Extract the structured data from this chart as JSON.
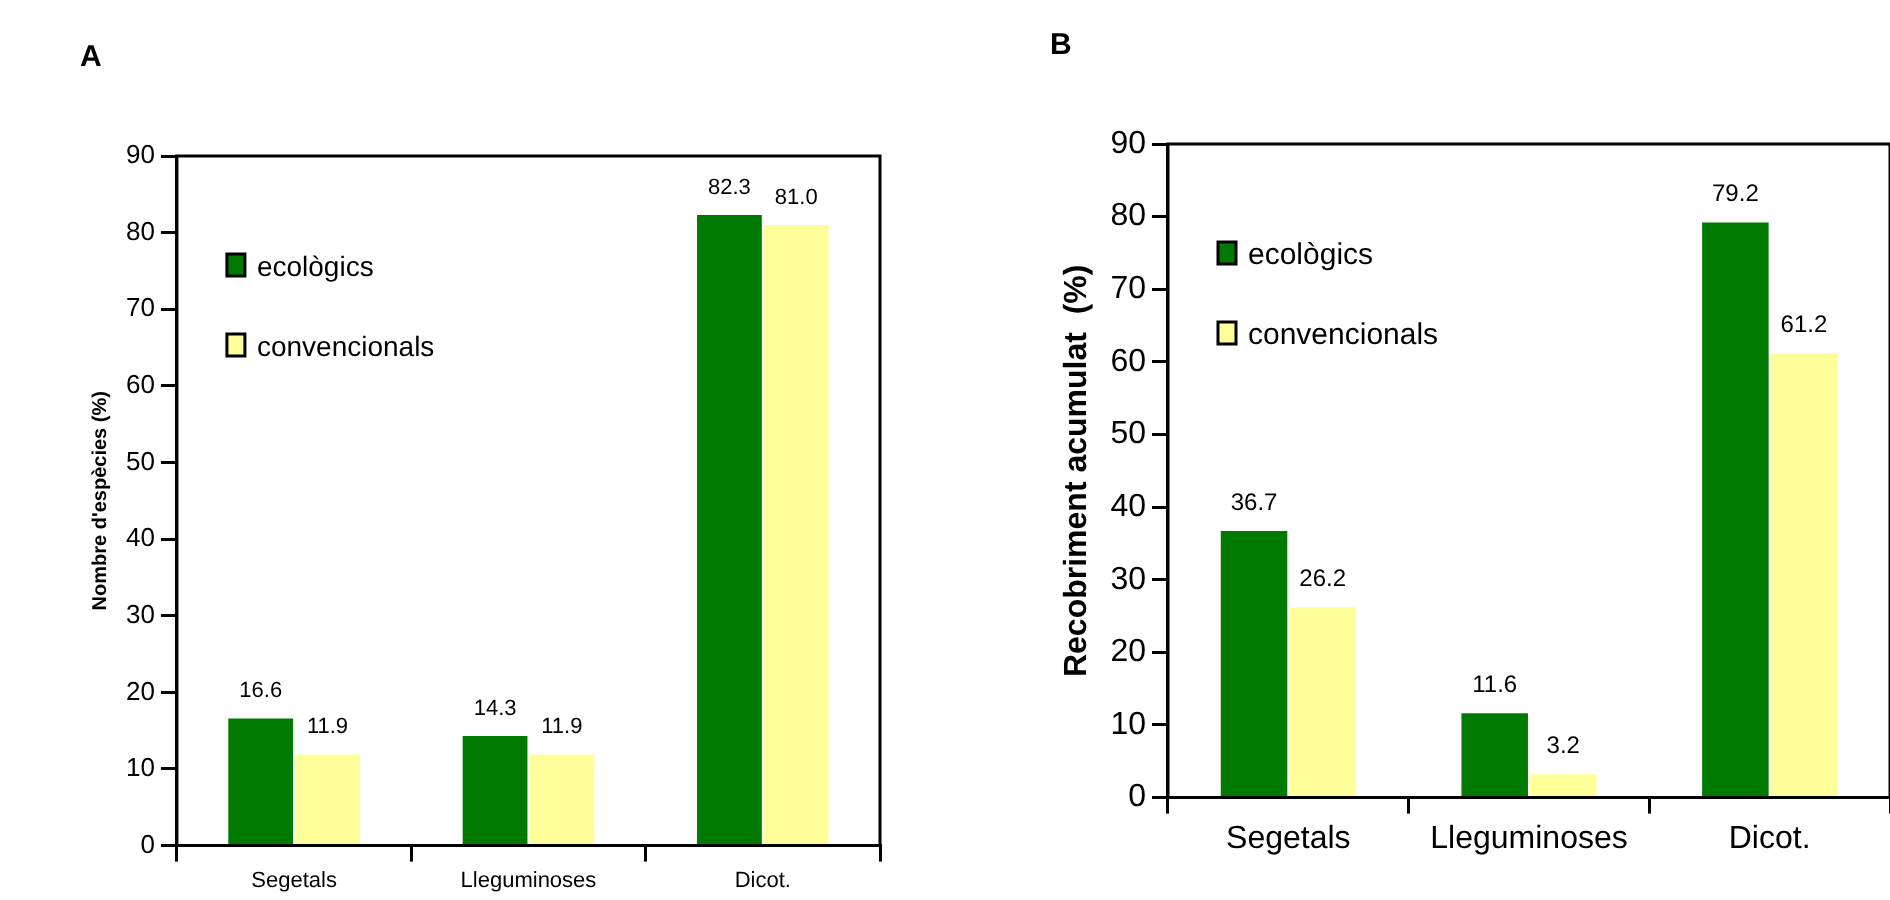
{
  "chart_data": [
    {
      "type": "bar",
      "title": "A",
      "ylabel": "Nombre d'espècies (%)",
      "categories": [
        "Segetals",
        "Lleguminoses",
        "Dicot."
      ],
      "series": [
        {
          "name": "ecològics",
          "color": "#007a00",
          "values": [
            16.6,
            14.3,
            82.3
          ],
          "value_labels": [
            "16.6",
            "14.3",
            "82.3"
          ]
        },
        {
          "name": "convencionals",
          "color": "#ffff99",
          "values": [
            11.9,
            11.9,
            81.0
          ],
          "value_labels": [
            "11.9",
            "11.9",
            "81.0"
          ]
        }
      ],
      "ylim": [
        0,
        90
      ],
      "yticks": [
        0,
        10,
        20,
        30,
        40,
        50,
        60,
        70,
        80,
        90
      ],
      "legend": "top left",
      "grid": false
    },
    {
      "type": "bar",
      "title": "B",
      "ylabel": "Recobriment acumulat  (%)",
      "categories": [
        "Segetals",
        "Lleguminoses",
        "Dicot."
      ],
      "series": [
        {
          "name": "ecològics",
          "color": "#007a00",
          "values": [
            36.7,
            11.6,
            79.2
          ],
          "value_labels": [
            "36.7",
            "11.6",
            "79.2"
          ]
        },
        {
          "name": "convencionals",
          "color": "#ffff99",
          "values": [
            26.2,
            3.2,
            61.2
          ],
          "value_labels": [
            "26.2",
            "3.2",
            "61.2"
          ]
        }
      ],
      "ylim": [
        0,
        90
      ],
      "yticks": [
        0,
        10,
        20,
        30,
        40,
        50,
        60,
        70,
        80,
        90
      ],
      "legend": "top left",
      "grid": false
    }
  ]
}
